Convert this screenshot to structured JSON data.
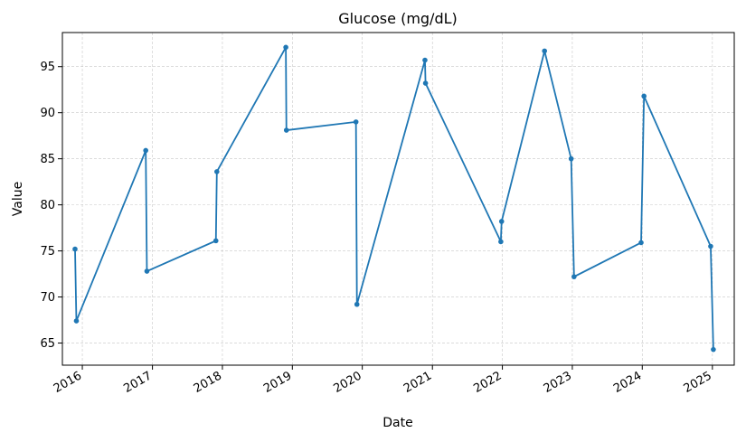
{
  "chart_data": {
    "type": "line",
    "title": "Glucose (mg/dL)",
    "xlabel": "Date",
    "ylabel": "Value",
    "grid": true,
    "color": "#1f77b4",
    "x_ticks": [
      "2016",
      "2017",
      "2018",
      "2019",
      "2020",
      "2021",
      "2022",
      "2023",
      "2024",
      "2025"
    ],
    "y_ticks": [
      65,
      70,
      75,
      80,
      85,
      90,
      95
    ],
    "xlim": [
      "2015-09-19",
      "2025-04-25"
    ],
    "ylim": [
      62.6,
      98.7
    ],
    "series": [
      {
        "name": "",
        "x": [
          "2015-11-24",
          "2015-12-01",
          "2016-11-27",
          "2016-12-03",
          "2017-11-28",
          "2017-12-03",
          "2018-11-28",
          "2018-12-01",
          "2019-11-29",
          "2019-12-04",
          "2020-11-23",
          "2020-11-26",
          "2021-12-24",
          "2021-12-28",
          "2022-08-09",
          "2022-12-26",
          "2023-01-10",
          "2023-12-26",
          "2024-01-10",
          "2024-12-23",
          "2025-01-06"
        ],
        "values": [
          75.2,
          67.4,
          85.9,
          72.8,
          76.1,
          83.6,
          97.1,
          88.1,
          89.0,
          69.2,
          95.7,
          93.2,
          76.0,
          78.2,
          96.7,
          85.0,
          72.2,
          75.9,
          91.8,
          75.5,
          64.3
        ]
      }
    ]
  }
}
